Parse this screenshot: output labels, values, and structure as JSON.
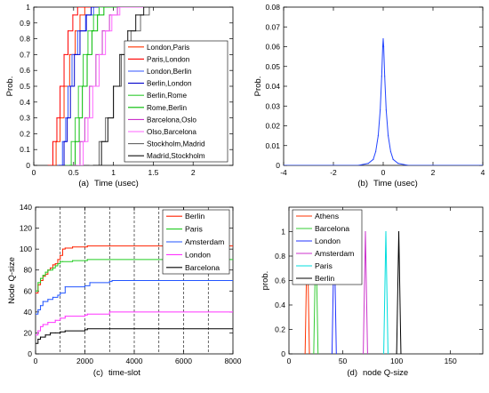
{
  "chart_data": [
    {
      "type": "line",
      "panel": "(a)",
      "xlabel": "Time (usec)",
      "ylabel": "Prob.",
      "xlim": [
        0,
        2.5
      ],
      "ylim": [
        0,
        1
      ],
      "xticks": [
        0,
        0.5,
        1,
        1.5,
        2
      ],
      "xtick_labels": [
        "0",
        "0.5",
        "1",
        "1.5",
        "2"
      ],
      "yticks": [
        0,
        0.1,
        0.2,
        0.3,
        0.4,
        0.5,
        0.6,
        0.7,
        0.8,
        0.9,
        1
      ],
      "ytick_labels": [
        "0",
        "0.1",
        "0.2",
        "0.3",
        "0.4",
        "0.5",
        "0.6",
        "0.7",
        "0.8",
        "0.9",
        "1"
      ],
      "grid": false,
      "legend": "right",
      "series": [
        {
          "name": "London,Paris",
          "color": "#ff3300",
          "x": [
            0.22,
            0.28,
            0.33,
            0.38,
            0.45,
            0.52,
            0.58,
            0.64
          ],
          "y": [
            0,
            0.15,
            0.3,
            0.5,
            0.7,
            0.85,
            0.95,
            1
          ]
        },
        {
          "name": "Paris,London",
          "color": "#ff0000",
          "x": [
            0.18,
            0.24,
            0.29,
            0.33,
            0.38,
            0.43,
            0.49,
            0.55
          ],
          "y": [
            0,
            0.15,
            0.3,
            0.5,
            0.7,
            0.85,
            0.95,
            1
          ]
        },
        {
          "name": "London,Berlin",
          "color": "#3355ff",
          "x": [
            0.3,
            0.36,
            0.4,
            0.43,
            0.48,
            0.55,
            0.65,
            0.75
          ],
          "y": [
            0,
            0.15,
            0.3,
            0.5,
            0.7,
            0.85,
            0.95,
            1
          ]
        },
        {
          "name": "Berlin,London",
          "color": "#0000cc",
          "x": [
            0.32,
            0.38,
            0.42,
            0.46,
            0.51,
            0.58,
            0.66,
            0.72
          ],
          "y": [
            0,
            0.15,
            0.3,
            0.5,
            0.7,
            0.85,
            0.95,
            1
          ]
        },
        {
          "name": "Berlin,Rome",
          "color": "#33cc33",
          "x": [
            0.4,
            0.47,
            0.52,
            0.56,
            0.62,
            0.68,
            0.75,
            0.82
          ],
          "y": [
            0,
            0.15,
            0.3,
            0.5,
            0.7,
            0.85,
            0.95,
            1
          ]
        },
        {
          "name": "Rome,Berlin",
          "color": "#00bb00",
          "x": [
            0.45,
            0.52,
            0.57,
            0.61,
            0.67,
            0.73,
            0.8,
            0.88
          ],
          "y": [
            0,
            0.15,
            0.3,
            0.5,
            0.7,
            0.85,
            0.95,
            1
          ]
        },
        {
          "name": "Barcelona,Oslo",
          "color": "#cc33cc",
          "x": [
            0.5,
            0.58,
            0.64,
            0.7,
            0.78,
            0.86,
            0.95,
            1.05
          ],
          "y": [
            0,
            0.15,
            0.3,
            0.5,
            0.7,
            0.85,
            0.95,
            1
          ]
        },
        {
          "name": "Olso,Barcelona",
          "color": "#ff66ff",
          "x": [
            0.55,
            0.62,
            0.68,
            0.74,
            0.82,
            0.9,
            0.98,
            1.08
          ],
          "y": [
            0,
            0.15,
            0.3,
            0.5,
            0.7,
            0.85,
            0.95,
            1
          ]
        },
        {
          "name": "Stockholm,Madrid",
          "color": "#666666",
          "x": [
            0.7,
            0.82,
            0.9,
            1.0,
            1.1,
            1.22,
            1.34,
            1.45
          ],
          "y": [
            0,
            0.15,
            0.3,
            0.5,
            0.7,
            0.85,
            0.95,
            1
          ]
        },
        {
          "name": "Madrid,Stockholm",
          "color": "#111111",
          "x": [
            0.75,
            0.85,
            0.93,
            1.0,
            1.08,
            1.18,
            1.28,
            1.38
          ],
          "y": [
            0,
            0.15,
            0.3,
            0.5,
            0.7,
            0.85,
            0.95,
            1
          ]
        }
      ]
    },
    {
      "type": "line",
      "panel": "(b)",
      "xlabel": "Time (usec)",
      "ylabel": "Prob.",
      "xlim": [
        -4,
        4
      ],
      "ylim": [
        0,
        0.08
      ],
      "xticks": [
        -4,
        -2,
        0,
        2,
        4
      ],
      "xtick_labels": [
        "-4",
        "-2",
        "0",
        "2",
        "4"
      ],
      "yticks": [
        0,
        0.01,
        0.02,
        0.03,
        0.04,
        0.05,
        0.06,
        0.07,
        0.08
      ],
      "ytick_labels": [
        "0",
        "0.01",
        "0.02",
        "0.03",
        "0.04",
        "0.05",
        "0.06",
        "0.07",
        "0.08"
      ],
      "grid": false,
      "series": [
        {
          "color": "#2244ff",
          "x": [
            -4,
            -1.0,
            -0.6,
            -0.4,
            -0.3,
            -0.2,
            -0.12,
            -0.06,
            -0.02,
            0,
            0.02,
            0.06,
            0.12,
            0.2,
            0.3,
            0.4,
            0.6,
            1.0,
            4
          ],
          "y": [
            0,
            0,
            0.001,
            0.003,
            0.007,
            0.015,
            0.028,
            0.045,
            0.06,
            0.064,
            0.06,
            0.045,
            0.028,
            0.015,
            0.007,
            0.003,
            0.001,
            0,
            0
          ]
        }
      ]
    },
    {
      "type": "line",
      "panel": "(c)",
      "xlabel": "time-slot",
      "ylabel": "Node Q-size",
      "xlim": [
        0,
        8000
      ],
      "ylim": [
        0,
        140
      ],
      "xticks": [
        0,
        2000,
        4000,
        6000,
        8000
      ],
      "xtick_labels": [
        "0",
        "2000",
        "4000",
        "6000",
        "8000"
      ],
      "yticks": [
        0,
        20,
        40,
        60,
        80,
        100,
        120,
        140
      ],
      "ytick_labels": [
        "0",
        "20",
        "40",
        "60",
        "80",
        "100",
        "120",
        "140"
      ],
      "vlines": [
        1000,
        2000,
        3000,
        4000,
        5000,
        6000,
        7000
      ],
      "grid": false,
      "legend": "right",
      "series": [
        {
          "name": "Berlin",
          "color": "#ff2200",
          "x": [
            0,
            100,
            200,
            300,
            400,
            500,
            600,
            700,
            800,
            900,
            1000,
            1100,
            1200,
            1500,
            2000,
            2100,
            3000,
            8000
          ],
          "y": [
            58,
            66,
            70,
            74,
            76,
            80,
            82,
            85,
            86,
            90,
            94,
            100,
            101,
            102,
            102,
            103,
            103,
            103
          ]
        },
        {
          "name": "Paris",
          "color": "#22cc22",
          "x": [
            0,
            100,
            200,
            300,
            400,
            500,
            600,
            700,
            800,
            900,
            1000,
            1100,
            1500,
            2000,
            2100,
            8000
          ],
          "y": [
            60,
            68,
            72,
            75,
            78,
            80,
            80,
            82,
            84,
            86,
            88,
            88,
            89,
            89,
            90,
            90
          ]
        },
        {
          "name": "Amsterdam",
          "color": "#2255ff",
          "x": [
            0,
            100,
            200,
            300,
            500,
            700,
            900,
            1000,
            1200,
            2000,
            2200,
            3000,
            3100,
            8000
          ],
          "y": [
            38,
            42,
            46,
            50,
            52,
            54,
            56,
            58,
            64,
            65,
            68,
            69,
            70,
            70
          ]
        },
        {
          "name": "London",
          "color": "#ff33ff",
          "x": [
            0,
            100,
            200,
            300,
            500,
            800,
            1000,
            1200,
            2000,
            2100,
            3000,
            8000
          ],
          "y": [
            18,
            22,
            26,
            28,
            30,
            32,
            34,
            36,
            37,
            38,
            40,
            40
          ]
        },
        {
          "name": "Barcelona",
          "color": "#000000",
          "x": [
            0,
            100,
            200,
            400,
            600,
            800,
            1000,
            1200,
            2000,
            2100,
            5000,
            8000
          ],
          "y": [
            10,
            14,
            16,
            18,
            20,
            20,
            21,
            22,
            23,
            24,
            24,
            24
          ]
        }
      ]
    },
    {
      "type": "line",
      "panel": "(d)",
      "xlabel": "node Q-size",
      "ylabel": "prob.",
      "xlim": [
        0,
        180
      ],
      "ylim": [
        0,
        1.2
      ],
      "xticks": [
        0,
        50,
        100,
        150
      ],
      "xtick_labels": [
        "0",
        "50",
        "100",
        "150"
      ],
      "yticks": [
        0,
        0.2,
        0.4,
        0.6,
        0.8,
        1
      ],
      "ytick_labels": [
        "0",
        "0.2",
        "0.4",
        "0.6",
        "0.8",
        "1"
      ],
      "grid": false,
      "legend": "top-left",
      "series": [
        {
          "name": "Athens",
          "color": "#ff3300",
          "x": [
            15,
            17,
            19
          ],
          "y": [
            0,
            1,
            0
          ]
        },
        {
          "name": "Barcelona",
          "color": "#33cc33",
          "x": [
            23,
            25,
            27
          ],
          "y": [
            0,
            1,
            0
          ]
        },
        {
          "name": "London",
          "color": "#2233ff",
          "x": [
            40,
            42,
            44
          ],
          "y": [
            0,
            1,
            0
          ]
        },
        {
          "name": "Amsterdam",
          "color": "#cc33cc",
          "x": [
            69,
            71,
            73
          ],
          "y": [
            0,
            1,
            0
          ]
        },
        {
          "name": "Paris",
          "color": "#00dddd",
          "x": [
            88,
            90,
            92
          ],
          "y": [
            0,
            1,
            0
          ]
        },
        {
          "name": "Berlin",
          "color": "#000000",
          "x": [
            100,
            102,
            104
          ],
          "y": [
            0,
            1,
            0
          ]
        }
      ]
    }
  ]
}
